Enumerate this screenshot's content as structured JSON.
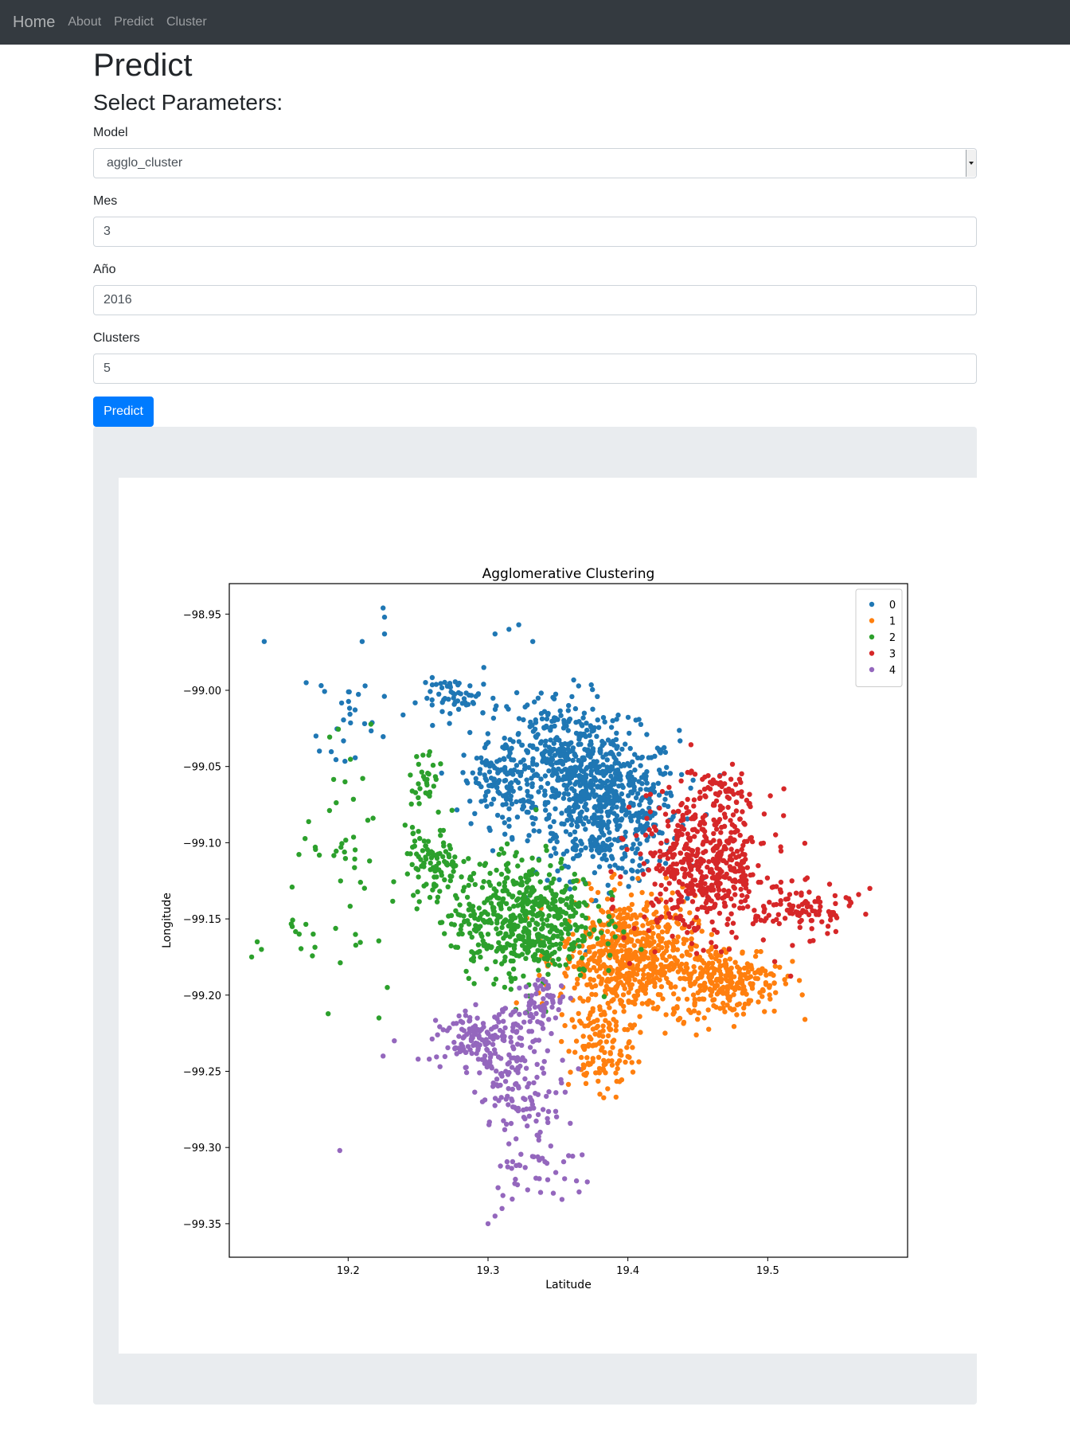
{
  "navbar": {
    "brand": "Home",
    "links": [
      "About",
      "Predict",
      "Cluster"
    ]
  },
  "page": {
    "title": "Predict",
    "subtitle": "Select Parameters:"
  },
  "form": {
    "model": {
      "label": "Model",
      "value": "agglo_cluster"
    },
    "mes": {
      "label": "Mes",
      "value": "3"
    },
    "anio": {
      "label": "Año",
      "value": "2016"
    },
    "clusters": {
      "label": "Clusters",
      "value": "5"
    },
    "submit_label": "Predict"
  },
  "chart_data": {
    "type": "scatter",
    "title": "Agglomerative Clustering",
    "xlabel": "Latitude",
    "ylabel": "Longitude",
    "xlim": [
      19.115,
      19.6
    ],
    "ylim": [
      -99.372,
      -98.93
    ],
    "xticks": [
      19.2,
      19.3,
      19.4,
      19.5
    ],
    "yticks": [
      -98.95,
      -99.0,
      -99.05,
      -99.1,
      -99.15,
      -99.2,
      -99.25,
      -99.3,
      -99.35
    ],
    "xtick_labels": [
      "19.2",
      "19.3",
      "19.4",
      "19.5"
    ],
    "ytick_labels": [
      "−98.95",
      "−99.00",
      "−99.05",
      "−99.10",
      "−99.15",
      "−99.20",
      "−99.25",
      "−99.30",
      "−99.35"
    ],
    "legend_placement": "top-right",
    "grid": false,
    "series": [
      {
        "name": "0",
        "color": "#1f77b4",
        "clusters": [
          {
            "cx": 19.385,
            "cy": -99.075,
            "sx": 0.032,
            "sy": 0.03,
            "n": 620
          },
          {
            "cx": 19.35,
            "cy": -99.04,
            "sx": 0.022,
            "sy": 0.025,
            "n": 260
          },
          {
            "cx": 19.31,
            "cy": -99.06,
            "sx": 0.018,
            "sy": 0.018,
            "n": 140
          },
          {
            "cx": 19.28,
            "cy": -99.005,
            "sx": 0.018,
            "sy": 0.008,
            "n": 60
          },
          {
            "cx": 19.2,
            "cy": -99.015,
            "sx": 0.012,
            "sy": 0.018,
            "n": 24
          }
        ],
        "points": [
          {
            "x": 19.14,
            "y": -98.968
          },
          {
            "x": 19.225,
            "y": -98.946
          },
          {
            "x": 19.226,
            "y": -98.952
          },
          {
            "x": 19.226,
            "y": -98.963
          },
          {
            "x": 19.21,
            "y": -98.968
          },
          {
            "x": 19.322,
            "y": -98.957
          },
          {
            "x": 19.315,
            "y": -98.96
          },
          {
            "x": 19.305,
            "y": -98.963
          },
          {
            "x": 19.332,
            "y": -98.968
          },
          {
            "x": 19.297,
            "y": -98.985
          },
          {
            "x": 19.17,
            "y": -98.995
          },
          {
            "x": 19.177,
            "y": -99.03
          }
        ]
      },
      {
        "name": "1",
        "color": "#ff7f0e",
        "clusters": [
          {
            "cx": 19.4,
            "cy": -99.175,
            "sx": 0.03,
            "sy": 0.025,
            "n": 620
          },
          {
            "cx": 19.47,
            "cy": -99.19,
            "sx": 0.025,
            "sy": 0.015,
            "n": 260
          },
          {
            "cx": 19.38,
            "cy": -99.235,
            "sx": 0.014,
            "sy": 0.018,
            "n": 120
          }
        ],
        "points": [
          {
            "x": 19.38,
            "y": -99.265
          },
          {
            "x": 19.37,
            "y": -99.258
          },
          {
            "x": 19.355,
            "y": -99.22
          }
        ]
      },
      {
        "name": "2",
        "color": "#2ca02c",
        "clusters": [
          {
            "cx": 19.325,
            "cy": -99.15,
            "sx": 0.032,
            "sy": 0.025,
            "n": 560
          },
          {
            "cx": 19.26,
            "cy": -99.115,
            "sx": 0.012,
            "sy": 0.015,
            "n": 90
          },
          {
            "cx": 19.255,
            "cy": -99.06,
            "sx": 0.008,
            "sy": 0.018,
            "n": 35
          },
          {
            "cx": 19.2,
            "cy": -99.12,
            "sx": 0.025,
            "sy": 0.045,
            "n": 50
          }
        ],
        "points": [
          {
            "x": 19.131,
            "y": -99.175
          },
          {
            "x": 19.135,
            "y": -99.165
          },
          {
            "x": 19.138,
            "y": -99.17
          },
          {
            "x": 19.16,
            "y": -99.155
          },
          {
            "x": 19.165,
            "y": -99.16
          },
          {
            "x": 19.175,
            "y": -99.16
          },
          {
            "x": 19.222,
            "y": -99.215
          },
          {
            "x": 19.228,
            "y": -99.195
          }
        ]
      },
      {
        "name": "3",
        "color": "#d62728",
        "clusters": [
          {
            "cx": 19.455,
            "cy": -99.115,
            "sx": 0.03,
            "sy": 0.03,
            "n": 520
          },
          {
            "cx": 19.525,
            "cy": -99.145,
            "sx": 0.022,
            "sy": 0.01,
            "n": 90
          },
          {
            "cx": 19.465,
            "cy": -99.065,
            "sx": 0.012,
            "sy": 0.01,
            "n": 40
          }
        ],
        "points": [
          {
            "x": 19.573,
            "y": -99.13
          },
          {
            "x": 19.565,
            "y": -99.134
          },
          {
            "x": 19.505,
            "y": -99.178
          },
          {
            "x": 19.448,
            "y": -99.055
          },
          {
            "x": 19.556,
            "y": -99.136
          }
        ]
      },
      {
        "name": "4",
        "color": "#9467bd",
        "clusters": [
          {
            "cx": 19.3,
            "cy": -99.23,
            "sx": 0.022,
            "sy": 0.012,
            "n": 180
          },
          {
            "cx": 19.34,
            "cy": -99.205,
            "sx": 0.01,
            "sy": 0.01,
            "n": 60
          },
          {
            "cx": 19.325,
            "cy": -99.265,
            "sx": 0.02,
            "sy": 0.015,
            "n": 90
          },
          {
            "cx": 19.335,
            "cy": -99.31,
            "sx": 0.02,
            "sy": 0.018,
            "n": 45
          }
        ],
        "points": [
          {
            "x": 19.194,
            "y": -99.302
          },
          {
            "x": 19.233,
            "y": -99.23
          },
          {
            "x": 19.225,
            "y": -99.24
          },
          {
            "x": 19.25,
            "y": -99.242
          },
          {
            "x": 19.258,
            "y": -99.242
          },
          {
            "x": 19.3,
            "y": -99.35
          },
          {
            "x": 19.305,
            "y": -99.345
          },
          {
            "x": 19.31,
            "y": -99.34
          }
        ]
      }
    ]
  }
}
